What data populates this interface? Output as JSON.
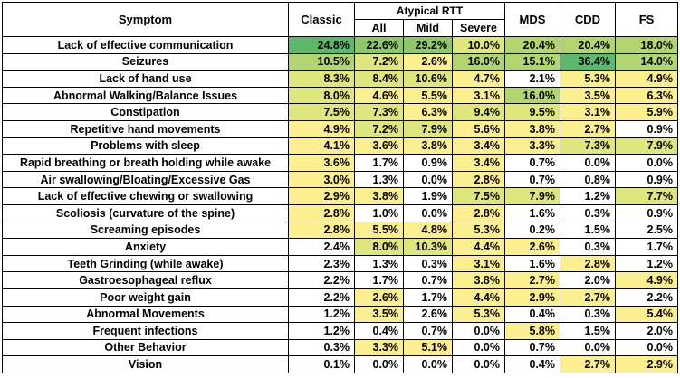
{
  "header": {
    "symptom": "Symptom",
    "classic": "Classic",
    "atypical_group": "Atypical RTT",
    "all": "All",
    "mild": "Mild",
    "severe": "Severe",
    "mds": "MDS",
    "cdd": "CDD",
    "fs": "FS"
  },
  "colors": {
    "level_0": "#ffffff",
    "level_1": "#fbef8f",
    "level_2": "#dfe67e",
    "level_3": "#b3d56f",
    "level_4": "#8ec86a",
    "level_5": "#5db86b"
  },
  "rows": [
    {
      "symptom": "Lack of effective communication",
      "values": [
        "24.8%",
        "22.6%",
        "29.2%",
        "10.0%",
        "20.4%",
        "20.4%",
        "18.0%"
      ],
      "shade": [
        5,
        4,
        4,
        2,
        3,
        3,
        3
      ]
    },
    {
      "symptom": "Seizures",
      "values": [
        "10.5%",
        "7.2%",
        "2.6%",
        "16.0%",
        "15.1%",
        "36.4%",
        "14.0%"
      ],
      "shade": [
        3,
        2,
        1,
        3,
        3,
        5,
        3
      ]
    },
    {
      "symptom": "Lack of hand use",
      "values": [
        "8.3%",
        "8.4%",
        "10.6%",
        "4.7%",
        "2.1%",
        "5.3%",
        "4.9%"
      ],
      "shade": [
        2,
        2,
        2,
        1,
        0,
        1,
        1
      ]
    },
    {
      "symptom": "Abnormal Walking/Balance Issues",
      "values": [
        "8.0%",
        "4.6%",
        "5.5%",
        "3.1%",
        "16.0%",
        "3.5%",
        "6.3%"
      ],
      "shade": [
        2,
        1,
        1,
        1,
        3,
        1,
        1
      ]
    },
    {
      "symptom": "Constipation",
      "values": [
        "7.5%",
        "7.3%",
        "6.3%",
        "9.4%",
        "9.5%",
        "3.1%",
        "5.9%"
      ],
      "shade": [
        2,
        2,
        1,
        2,
        2,
        1,
        1
      ]
    },
    {
      "symptom": "Repetitive hand movements",
      "values": [
        "4.9%",
        "7.2%",
        "7.9%",
        "5.6%",
        "3.8%",
        "2.7%",
        "0.9%"
      ],
      "shade": [
        1,
        2,
        2,
        1,
        1,
        1,
        0
      ]
    },
    {
      "symptom": "Problems with sleep",
      "values": [
        "4.1%",
        "3.6%",
        "3.8%",
        "3.4%",
        "3.3%",
        "7.3%",
        "7.9%"
      ],
      "shade": [
        1,
        1,
        1,
        1,
        1,
        2,
        2
      ]
    },
    {
      "symptom": "Rapid breathing or breath holding while awake",
      "values": [
        "3.6%",
        "1.7%",
        "0.9%",
        "3.4%",
        "0.7%",
        "0.0%",
        "0.0%"
      ],
      "shade": [
        1,
        0,
        0,
        1,
        0,
        0,
        0
      ]
    },
    {
      "symptom": "Air swallowing/Bloating/Excessive Gas",
      "values": [
        "3.0%",
        "1.3%",
        "0.0%",
        "2.8%",
        "0.7%",
        "0.8%",
        "0.9%"
      ],
      "shade": [
        1,
        0,
        0,
        1,
        0,
        0,
        0
      ]
    },
    {
      "symptom": "Lack of effective chewing or swallowing",
      "values": [
        "2.9%",
        "3.8%",
        "1.9%",
        "7.5%",
        "7.9%",
        "1.2%",
        "7.7%"
      ],
      "shade": [
        1,
        1,
        0,
        2,
        2,
        0,
        2
      ]
    },
    {
      "symptom": "Scoliosis (curvature of the spine)",
      "values": [
        "2.8%",
        "1.0%",
        "0.0%",
        "2.8%",
        "1.6%",
        "0.3%",
        "0.9%"
      ],
      "shade": [
        1,
        0,
        0,
        1,
        0,
        0,
        0
      ]
    },
    {
      "symptom": "Screaming episodes",
      "values": [
        "2.8%",
        "5.5%",
        "4.8%",
        "5.3%",
        "0.2%",
        "1.5%",
        "2.5%"
      ],
      "shade": [
        1,
        1,
        1,
        1,
        0,
        0,
        0
      ]
    },
    {
      "symptom": "Anxiety",
      "values": [
        "2.4%",
        "8.0%",
        "10.3%",
        "4.4%",
        "2.6%",
        "0.3%",
        "1.7%"
      ],
      "shade": [
        0,
        2,
        2,
        1,
        1,
        0,
        0
      ]
    },
    {
      "symptom": "Teeth Grinding (while awake)",
      "values": [
        "2.3%",
        "1.3%",
        "0.3%",
        "3.1%",
        "1.6%",
        "2.8%",
        "1.2%"
      ],
      "shade": [
        0,
        0,
        0,
        1,
        0,
        1,
        0
      ]
    },
    {
      "symptom": "Gastroesophageal reflux",
      "values": [
        "2.2%",
        "1.7%",
        "0.7%",
        "3.8%",
        "2.7%",
        "2.0%",
        "4.9%"
      ],
      "shade": [
        0,
        0,
        0,
        1,
        1,
        0,
        1
      ]
    },
    {
      "symptom": "Poor weight gain",
      "values": [
        "2.2%",
        "2.6%",
        "1.7%",
        "4.4%",
        "2.9%",
        "2.7%",
        "2.2%"
      ],
      "shade": [
        0,
        1,
        0,
        1,
        1,
        1,
        0
      ]
    },
    {
      "symptom": "Abnormal Movements",
      "values": [
        "1.2%",
        "3.5%",
        "2.6%",
        "5.3%",
        "0.4%",
        "0.3%",
        "5.4%"
      ],
      "shade": [
        0,
        1,
        0,
        1,
        0,
        0,
        1
      ]
    },
    {
      "symptom": "Frequent infections",
      "values": [
        "1.2%",
        "0.4%",
        "0.7%",
        "0.0%",
        "5.8%",
        "1.5%",
        "2.0%"
      ],
      "shade": [
        0,
        0,
        0,
        0,
        1,
        0,
        0
      ]
    },
    {
      "symptom": "Other Behavior",
      "values": [
        "0.3%",
        "3.3%",
        "5.1%",
        "0.0%",
        "0.7%",
        "0.0%",
        "0.0%"
      ],
      "shade": [
        0,
        1,
        1,
        0,
        0,
        0,
        0
      ]
    },
    {
      "symptom": "Vision",
      "values": [
        "0.1%",
        "0.0%",
        "0.0%",
        "0.0%",
        "0.4%",
        "2.7%",
        "2.9%"
      ],
      "shade": [
        0,
        0,
        0,
        0,
        0,
        1,
        1
      ]
    }
  ]
}
